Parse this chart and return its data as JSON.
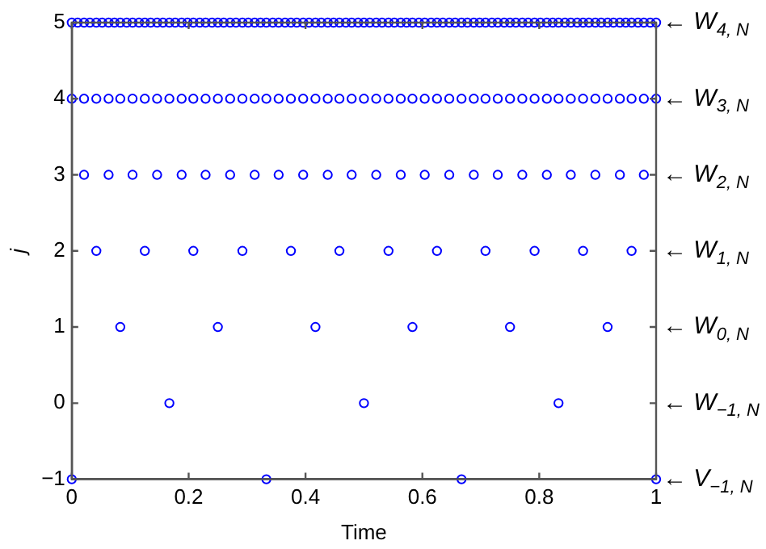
{
  "chart_data": {
    "type": "scatter",
    "xlabel": "Time",
    "ylabel": "j",
    "xlim": [
      0,
      1
    ],
    "ylim": [
      -1,
      5
    ],
    "xticks": [
      0,
      0.2,
      0.4,
      0.6,
      0.8,
      1
    ],
    "yticks": [
      -1,
      0,
      1,
      2,
      3,
      4,
      5
    ],
    "grid": false,
    "legend": false,
    "marker": "circle",
    "series": [
      {
        "color": "#0000ff",
        "x": [
          0,
          0.01,
          0.021,
          0.031,
          0.042,
          0.052,
          0.063,
          0.073,
          0.083,
          0.094,
          0.104,
          0.115,
          0.125,
          0.135,
          0.146,
          0.156,
          0.167,
          0.177,
          0.188,
          0.198,
          0.208,
          0.219,
          0.229,
          0.24,
          0.25,
          0.26,
          0.271,
          0.281,
          0.292,
          0.302,
          0.313,
          0.323,
          0.333,
          0.344,
          0.354,
          0.365,
          0.375,
          0.385,
          0.396,
          0.406,
          0.417,
          0.427,
          0.438,
          0.448,
          0.458,
          0.469,
          0.479,
          0.49,
          0.5,
          0.51,
          0.521,
          0.531,
          0.542,
          0.552,
          0.563,
          0.573,
          0.583,
          0.594,
          0.604,
          0.615,
          0.625,
          0.635,
          0.646,
          0.656,
          0.667,
          0.677,
          0.688,
          0.698,
          0.708,
          0.719,
          0.729,
          0.74,
          0.75,
          0.76,
          0.771,
          0.781,
          0.792,
          0.802,
          0.813,
          0.823,
          0.833,
          0.844,
          0.854,
          0.865,
          0.875,
          0.885,
          0.896,
          0.906,
          0.917,
          0.927,
          0.938,
          0.948,
          0.958,
          0.969,
          0.979,
          0.99,
          1
        ],
        "values": [
          5,
          5,
          5,
          5,
          5,
          5,
          5,
          5,
          5,
          5,
          5,
          5,
          5,
          5,
          5,
          5,
          5,
          5,
          5,
          5,
          5,
          5,
          5,
          5,
          5,
          5,
          5,
          5,
          5,
          5,
          5,
          5,
          5,
          5,
          5,
          5,
          5,
          5,
          5,
          5,
          5,
          5,
          5,
          5,
          5,
          5,
          5,
          5,
          5,
          5,
          5,
          5,
          5,
          5,
          5,
          5,
          5,
          5,
          5,
          5,
          5,
          5,
          5,
          5,
          5,
          5,
          5,
          5,
          5,
          5,
          5,
          5,
          5,
          5,
          5,
          5,
          5,
          5,
          5,
          5,
          5,
          5,
          5,
          5,
          5,
          5,
          5,
          5,
          5,
          5,
          5,
          5,
          5,
          5,
          5,
          5,
          5
        ]
      },
      {
        "color": "#0000ff",
        "x": [
          0,
          0.021,
          0.042,
          0.063,
          0.083,
          0.104,
          0.125,
          0.146,
          0.167,
          0.188,
          0.208,
          0.229,
          0.25,
          0.271,
          0.292,
          0.313,
          0.333,
          0.354,
          0.375,
          0.396,
          0.417,
          0.438,
          0.458,
          0.479,
          0.5,
          0.521,
          0.542,
          0.563,
          0.583,
          0.604,
          0.625,
          0.646,
          0.667,
          0.688,
          0.708,
          0.729,
          0.75,
          0.771,
          0.792,
          0.813,
          0.833,
          0.854,
          0.875,
          0.896,
          0.917,
          0.938,
          0.958,
          0.979,
          1
        ],
        "values": [
          4,
          4,
          4,
          4,
          4,
          4,
          4,
          4,
          4,
          4,
          4,
          4,
          4,
          4,
          4,
          4,
          4,
          4,
          4,
          4,
          4,
          4,
          4,
          4,
          4,
          4,
          4,
          4,
          4,
          4,
          4,
          4,
          4,
          4,
          4,
          4,
          4,
          4,
          4,
          4,
          4,
          4,
          4,
          4,
          4,
          4,
          4,
          4,
          4
        ]
      },
      {
        "color": "#0000ff",
        "x": [
          0.021,
          0.063,
          0.104,
          0.146,
          0.188,
          0.229,
          0.271,
          0.313,
          0.354,
          0.396,
          0.438,
          0.479,
          0.521,
          0.563,
          0.604,
          0.646,
          0.688,
          0.729,
          0.771,
          0.813,
          0.854,
          0.896,
          0.938,
          0.979
        ],
        "values": [
          3,
          3,
          3,
          3,
          3,
          3,
          3,
          3,
          3,
          3,
          3,
          3,
          3,
          3,
          3,
          3,
          3,
          3,
          3,
          3,
          3,
          3,
          3,
          3
        ]
      },
      {
        "color": "#0000ff",
        "x": [
          0.042,
          0.125,
          0.208,
          0.292,
          0.375,
          0.458,
          0.542,
          0.625,
          0.708,
          0.792,
          0.875,
          0.958
        ],
        "values": [
          2,
          2,
          2,
          2,
          2,
          2,
          2,
          2,
          2,
          2,
          2,
          2
        ]
      },
      {
        "color": "#0000ff",
        "x": [
          0.083,
          0.25,
          0.417,
          0.583,
          0.75,
          0.917
        ],
        "values": [
          1,
          1,
          1,
          1,
          1,
          1
        ]
      },
      {
        "color": "#0000ff",
        "x": [
          0.167,
          0.5,
          0.833
        ],
        "values": [
          0,
          0,
          0
        ]
      },
      {
        "color": "#0000ff",
        "x": [
          0,
          0.333,
          0.667,
          1
        ],
        "values": [
          -1,
          -1,
          -1,
          -1
        ]
      }
    ],
    "annotations": [
      "← W$_{4, N}$",
      "← W$_{3, N}$",
      "← W$_{2, N}$",
      "← W$_{1, N}$",
      "← W$_{0, N}$",
      "← W$_{−1, N}$",
      "← V$_{−1, N}$"
    ]
  }
}
